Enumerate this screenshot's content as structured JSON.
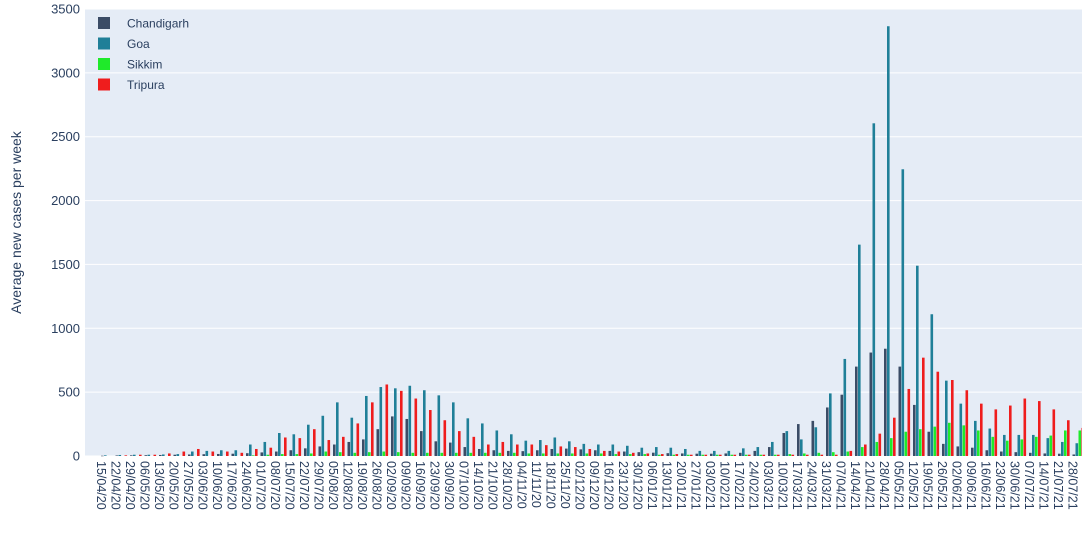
{
  "chart_data": {
    "type": "bar",
    "title": "",
    "xlabel": "",
    "ylabel": "Average new cases per week",
    "ylim": [
      0,
      3500
    ],
    "yticks": [
      0,
      500,
      1000,
      1500,
      2000,
      2500,
      3000,
      3500
    ],
    "grid": true,
    "legend_position": "top-left",
    "colors": {
      "plot_background": "#e5ecf6",
      "grid": "#ffffff",
      "text": "#2a3f5f"
    },
    "categories": [
      "15/04/20",
      "22/04/20",
      "29/04/20",
      "06/05/20",
      "13/05/20",
      "20/05/20",
      "27/05/20",
      "03/06/20",
      "10/06/20",
      "17/06/20",
      "24/06/20",
      "01/07/20",
      "08/07/20",
      "15/07/20",
      "22/07/20",
      "29/07/20",
      "05/08/20",
      "12/08/20",
      "19/08/20",
      "26/08/20",
      "02/09/20",
      "09/09/20",
      "16/09/20",
      "23/09/20",
      "30/09/20",
      "07/10/20",
      "14/10/20",
      "21/10/20",
      "28/10/20",
      "04/11/20",
      "11/11/20",
      "18/11/20",
      "25/11/20",
      "02/12/20",
      "09/12/20",
      "16/12/20",
      "23/12/20",
      "30/12/20",
      "06/01/21",
      "13/01/21",
      "20/01/21",
      "27/01/21",
      "03/02/21",
      "10/02/21",
      "17/02/21",
      "24/02/21",
      "03/03/21",
      "10/03/21",
      "17/03/21",
      "24/03/21",
      "31/03/21",
      "07/04/21",
      "14/04/21",
      "21/04/21",
      "28/04/21",
      "05/05/21",
      "12/05/21",
      "19/05/21",
      "26/05/21",
      "02/06/21",
      "09/06/21",
      "16/06/21",
      "23/06/21",
      "30/06/21",
      "07/07/21",
      "14/07/21",
      "21/07/21",
      "28/07/21",
      "04/08/21"
    ],
    "series": [
      {
        "name": "Chandigarh",
        "color": "#3b4c66",
        "values": [
          0,
          2,
          4,
          5,
          6,
          8,
          10,
          12,
          14,
          16,
          18,
          22,
          28,
          35,
          45,
          60,
          75,
          90,
          110,
          130,
          210,
          310,
          290,
          195,
          115,
          105,
          70,
          55,
          45,
          40,
          38,
          45,
          55,
          58,
          52,
          45,
          40,
          35,
          30,
          26,
          22,
          20,
          18,
          18,
          20,
          25,
          40,
          70,
          180,
          250,
          275,
          380,
          480,
          700,
          810,
          840,
          700,
          400,
          190,
          95,
          75,
          65,
          45,
          35,
          30,
          25,
          20,
          18,
          12
        ]
      },
      {
        "name": "Goa",
        "color": "#1f7f98",
        "values": [
          0,
          5,
          8,
          10,
          10,
          12,
          15,
          35,
          40,
          45,
          45,
          90,
          110,
          180,
          170,
          245,
          315,
          420,
          300,
          470,
          540,
          530,
          550,
          515,
          475,
          420,
          295,
          255,
          200,
          170,
          120,
          125,
          145,
          115,
          95,
          90,
          90,
          80,
          65,
          70,
          65,
          55,
          40,
          40,
          40,
          60,
          70,
          110,
          195,
          130,
          225,
          490,
          760,
          1655,
          2605,
          3365,
          2245,
          1490,
          1110,
          590,
          410,
          275,
          215,
          165,
          165,
          165,
          140,
          110,
          100
        ]
      },
      {
        "name": "Sikkim",
        "color": "#1fea2a",
        "values": [
          0,
          0,
          0,
          0,
          0,
          0,
          0,
          0,
          0,
          0,
          0,
          5,
          10,
          15,
          15,
          20,
          35,
          30,
          25,
          30,
          35,
          30,
          25,
          25,
          25,
          25,
          25,
          25,
          25,
          25,
          20,
          20,
          20,
          20,
          20,
          20,
          15,
          15,
          15,
          10,
          10,
          10,
          10,
          10,
          10,
          10,
          10,
          10,
          15,
          20,
          25,
          30,
          35,
          70,
          110,
          140,
          190,
          210,
          230,
          260,
          240,
          200,
          150,
          120,
          130,
          150,
          160,
          200,
          200
        ]
      },
      {
        "name": "Tripura",
        "color": "#ef1d1d",
        "values": [
          0,
          0,
          5,
          10,
          10,
          20,
          35,
          55,
          35,
          35,
          25,
          55,
          65,
          145,
          140,
          210,
          125,
          150,
          255,
          420,
          560,
          510,
          450,
          360,
          280,
          195,
          150,
          90,
          110,
          90,
          90,
          85,
          75,
          70,
          55,
          40,
          35,
          25,
          20,
          15,
          15,
          10,
          10,
          10,
          10,
          10,
          10,
          10,
          10,
          10,
          10,
          10,
          40,
          90,
          175,
          300,
          525,
          770,
          660,
          595,
          515,
          410,
          365,
          395,
          450,
          430,
          365,
          280,
          220
        ]
      }
    ]
  }
}
